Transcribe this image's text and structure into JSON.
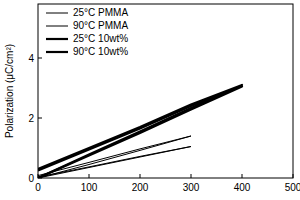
{
  "chart_data": {
    "type": "line",
    "y_label": "Polarization (μC/cm²)",
    "xlim": [
      0,
      500
    ],
    "xticks": [
      0,
      100,
      200,
      300,
      400,
      500
    ],
    "ylim": [
      0,
      5.8
    ],
    "yticks": [
      0,
      2,
      4
    ],
    "legend": "upper left",
    "series": [
      {
        "name": "25°C PMMA",
        "color": "#000000",
        "x": [
          0,
          100,
          200,
          300,
          200,
          100,
          0
        ],
        "values": [
          0,
          0.35,
          0.7,
          1.05,
          0.72,
          0.37,
          0.03
        ]
      },
      {
        "name": "90°C PMMA",
        "color": "#000000",
        "x": [
          0,
          100,
          200,
          300,
          200,
          100,
          0
        ],
        "values": [
          0,
          0.45,
          0.92,
          1.4,
          0.97,
          0.52,
          0.08
        ]
      },
      {
        "name": "25°C 10wt%",
        "color": "#000000",
        "x": [
          0,
          100,
          200,
          300,
          400,
          300,
          200,
          100,
          0
        ],
        "values": [
          0,
          0.75,
          1.5,
          2.28,
          3.05,
          2.4,
          1.65,
          0.95,
          0.25
        ]
      },
      {
        "name": "90°C 10wt%",
        "color": "#000000",
        "x": [
          0,
          100,
          200,
          300,
          400,
          300,
          200,
          100,
          0
        ],
        "values": [
          0,
          0.78,
          1.55,
          2.33,
          3.1,
          2.45,
          1.7,
          1.0,
          0.3
        ]
      }
    ]
  }
}
